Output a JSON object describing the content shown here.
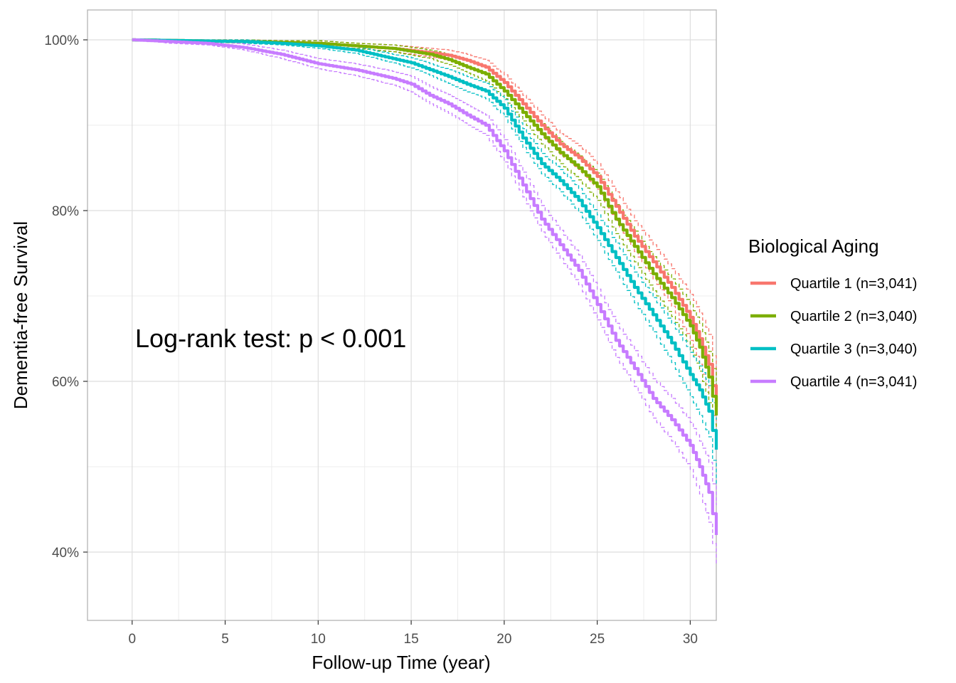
{
  "chart_data": {
    "type": "line",
    "title": "",
    "xlabel": "Follow-up Time (year)",
    "ylabel": "Dementia-free Survival",
    "xlim": [
      -2.4,
      31.4
    ],
    "ylim": [
      0.32,
      1.035
    ],
    "x_ticks": [
      0,
      5,
      10,
      15,
      20,
      25,
      30
    ],
    "x_tick_labels": [
      "0",
      "5",
      "10",
      "15",
      "20",
      "25",
      "30"
    ],
    "y_ticks": [
      0.4,
      0.6,
      0.8,
      1.0
    ],
    "y_tick_labels": [
      "40%",
      "60%",
      "80%",
      "100%"
    ],
    "grid": true,
    "annotation": "Log-rank test: p < 0.001",
    "legend": {
      "title": "Biological Aging",
      "position": "right"
    },
    "series": [
      {
        "name": "Quartile 1 (n=3,041)",
        "color": "#F8766D",
        "x": [
          0,
          3,
          6,
          8,
          10,
          12,
          14,
          16,
          17,
          18,
          19,
          20,
          21,
          22,
          23,
          24,
          25,
          26,
          27,
          28,
          29,
          30,
          30.5,
          31,
          31.4
        ],
        "values": [
          1.0,
          0.999,
          0.998,
          0.997,
          0.996,
          0.993,
          0.99,
          0.985,
          0.982,
          0.976,
          0.968,
          0.95,
          0.925,
          0.9,
          0.878,
          0.862,
          0.84,
          0.805,
          0.77,
          0.74,
          0.71,
          0.675,
          0.65,
          0.62,
          0.57
        ],
        "lower": [
          1.0,
          0.998,
          0.996,
          0.995,
          0.993,
          0.99,
          0.986,
          0.98,
          0.976,
          0.969,
          0.96,
          0.941,
          0.915,
          0.888,
          0.866,
          0.848,
          0.825,
          0.788,
          0.752,
          0.72,
          0.688,
          0.648,
          0.62,
          0.585,
          0.535
        ],
        "upper": [
          1.0,
          1.0,
          1.0,
          0.999,
          0.999,
          0.996,
          0.994,
          0.99,
          0.988,
          0.983,
          0.976,
          0.959,
          0.935,
          0.912,
          0.89,
          0.876,
          0.855,
          0.822,
          0.788,
          0.76,
          0.732,
          0.702,
          0.68,
          0.655,
          0.605
        ]
      },
      {
        "name": "Quartile 2 (n=3,040)",
        "color": "#7CAE00",
        "x": [
          0,
          3,
          6,
          8,
          10,
          12,
          14,
          16,
          17,
          18,
          19,
          20,
          21,
          22,
          23,
          24,
          25,
          26,
          27,
          28,
          29,
          30,
          30.5,
          31,
          31.4
        ],
        "values": [
          1.0,
          0.999,
          0.998,
          0.997,
          0.996,
          0.993,
          0.99,
          0.983,
          0.977,
          0.968,
          0.96,
          0.94,
          0.915,
          0.89,
          0.868,
          0.85,
          0.828,
          0.79,
          0.758,
          0.726,
          0.698,
          0.665,
          0.64,
          0.605,
          0.56
        ],
        "lower": [
          1.0,
          0.998,
          0.996,
          0.995,
          0.993,
          0.99,
          0.986,
          0.978,
          0.971,
          0.961,
          0.952,
          0.931,
          0.905,
          0.878,
          0.855,
          0.836,
          0.812,
          0.773,
          0.74,
          0.706,
          0.676,
          0.64,
          0.612,
          0.575,
          0.525
        ],
        "upper": [
          1.0,
          1.0,
          1.0,
          0.999,
          0.999,
          0.996,
          0.994,
          0.988,
          0.983,
          0.975,
          0.968,
          0.949,
          0.925,
          0.902,
          0.881,
          0.864,
          0.844,
          0.807,
          0.776,
          0.746,
          0.72,
          0.69,
          0.668,
          0.635,
          0.595
        ]
      },
      {
        "name": "Quartile 3 (n=3,040)",
        "color": "#00BFC4",
        "x": [
          0,
          3,
          6,
          8,
          10,
          12,
          14,
          15,
          16,
          17,
          18,
          19,
          20,
          21,
          22,
          23,
          24,
          25,
          26,
          27,
          28,
          29,
          30,
          30.5,
          31,
          31.4
        ],
        "values": [
          1.0,
          0.999,
          0.998,
          0.996,
          0.993,
          0.988,
          0.978,
          0.973,
          0.965,
          0.957,
          0.948,
          0.94,
          0.92,
          0.885,
          0.855,
          0.835,
          0.812,
          0.78,
          0.745,
          0.71,
          0.678,
          0.645,
          0.608,
          0.59,
          0.565,
          0.52
        ],
        "lower": [
          1.0,
          0.998,
          0.996,
          0.994,
          0.99,
          0.984,
          0.973,
          0.967,
          0.958,
          0.949,
          0.939,
          0.931,
          0.91,
          0.874,
          0.843,
          0.822,
          0.798,
          0.765,
          0.728,
          0.692,
          0.658,
          0.622,
          0.582,
          0.56,
          0.535,
          0.48
        ],
        "upper": [
          1.0,
          1.0,
          1.0,
          0.998,
          0.996,
          0.992,
          0.983,
          0.979,
          0.972,
          0.965,
          0.957,
          0.949,
          0.93,
          0.896,
          0.867,
          0.848,
          0.826,
          0.795,
          0.762,
          0.728,
          0.698,
          0.668,
          0.634,
          0.618,
          0.595,
          0.555
        ]
      },
      {
        "name": "Quartile 4 (n=3,041)",
        "color": "#C77CFF",
        "x": [
          0,
          2,
          4,
          6,
          8,
          10,
          12,
          14,
          15,
          16,
          17,
          18,
          19,
          20,
          21,
          22,
          23,
          24,
          25,
          26,
          27,
          28,
          29,
          30,
          30.5,
          31,
          31.4
        ],
        "values": [
          1.0,
          0.998,
          0.996,
          0.991,
          0.983,
          0.972,
          0.965,
          0.955,
          0.948,
          0.935,
          0.925,
          0.912,
          0.9,
          0.87,
          0.83,
          0.79,
          0.76,
          0.73,
          0.69,
          0.648,
          0.615,
          0.58,
          0.555,
          0.525,
          0.5,
          0.47,
          0.42
        ],
        "lower": [
          1.0,
          0.996,
          0.994,
          0.988,
          0.978,
          0.966,
          0.958,
          0.947,
          0.939,
          0.925,
          0.914,
          0.9,
          0.888,
          0.857,
          0.816,
          0.775,
          0.744,
          0.713,
          0.672,
          0.628,
          0.594,
          0.557,
          0.53,
          0.497,
          0.468,
          0.435,
          0.385
        ],
        "upper": [
          1.0,
          1.0,
          0.999,
          0.995,
          0.988,
          0.978,
          0.972,
          0.963,
          0.957,
          0.945,
          0.936,
          0.924,
          0.912,
          0.883,
          0.845,
          0.806,
          0.777,
          0.748,
          0.708,
          0.668,
          0.636,
          0.603,
          0.58,
          0.552,
          0.53,
          0.505,
          0.455
        ]
      }
    ]
  }
}
